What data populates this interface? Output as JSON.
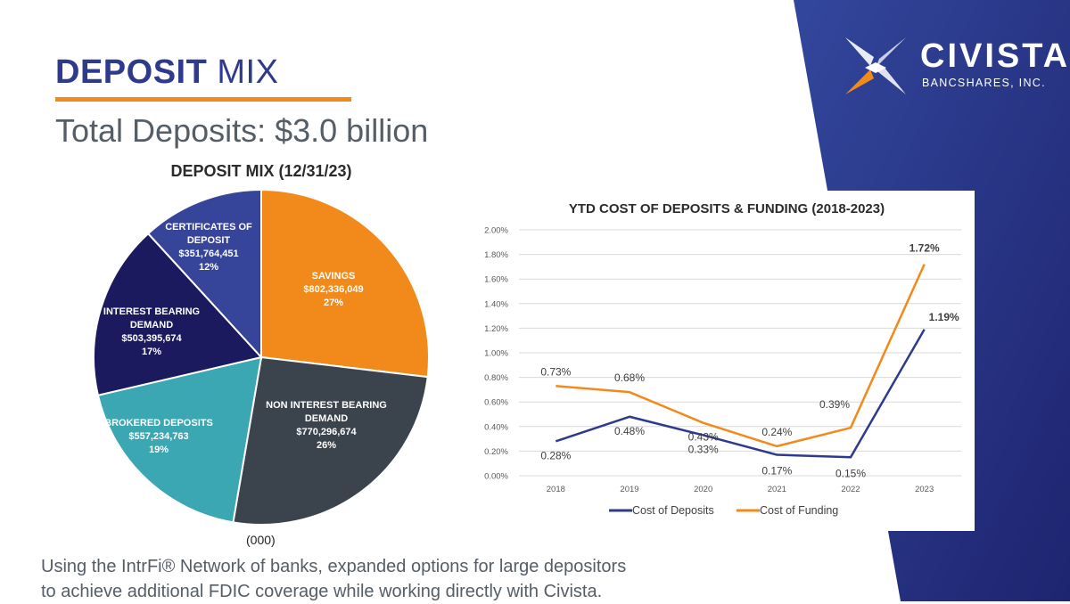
{
  "header": {
    "title_bold": "DEPOSIT",
    "title_light": " MIX",
    "subtitle": "Total Deposits:  $3.0 billion"
  },
  "brand": {
    "name": "CIVISTA",
    "tagline": "BANCSHARES, INC.",
    "colors": {
      "navy": "#2e3a8c",
      "orange": "#f28a1b",
      "gradient_dark": "#1e2470",
      "gradient_light": "#33479c"
    }
  },
  "footer": {
    "unit_note": "(000)",
    "line1": "Using the IntrFi® Network of banks, expanded options for large depositors",
    "line2": "to achieve additional FDIC coverage while working directly with Civista."
  },
  "chart_data": [
    {
      "type": "pie",
      "title": "DEPOSIT MIX (12/31/23)",
      "slices": [
        {
          "label_lines": [
            "SAVINGS"
          ],
          "amount": "$802,336,049",
          "pct_label": "27%",
          "value": 802336049,
          "color": "#f28a1b"
        },
        {
          "label_lines": [
            "NON INTEREST BEARING",
            "DEMAND"
          ],
          "amount": "$770,296,674",
          "pct_label": "26%",
          "value": 770296674,
          "color": "#3b434c"
        },
        {
          "label_lines": [
            "BROKERED DEPOSITS"
          ],
          "amount": "$557,234,763",
          "pct_label": "19%",
          "value": 557234763,
          "color": "#3aa7b3"
        },
        {
          "label_lines": [
            "INTEREST BEARING",
            "DEMAND"
          ],
          "amount": "$503,395,674",
          "pct_label": "17%",
          "value": 503395674,
          "color": "#1c1a5e"
        },
        {
          "label_lines": [
            "CERTIFICATES OF",
            "DEPOSIT"
          ],
          "amount": "$351,764,451",
          "pct_label": "12%",
          "value": 351764451,
          "color": "#36449a"
        }
      ]
    },
    {
      "type": "line",
      "title": "YTD COST OF DEPOSITS & FUNDING (2018-2023)",
      "categories": [
        "2018",
        "2019",
        "2020",
        "2021",
        "2022",
        "2023"
      ],
      "ylim": [
        0,
        2.0
      ],
      "yticks": [
        "0.00%",
        "0.20%",
        "0.40%",
        "0.60%",
        "0.80%",
        "1.00%",
        "1.20%",
        "1.40%",
        "1.60%",
        "1.80%",
        "2.00%"
      ],
      "grid": true,
      "legend": "bottom",
      "series": [
        {
          "name": "Cost of Deposits",
          "color": "#2e3a8c",
          "values": [
            0.28,
            0.48,
            0.33,
            0.17,
            0.15,
            1.19
          ],
          "labels": [
            "0.28%",
            "0.48%",
            "0.33%",
            "0.17%",
            "0.15%",
            "1.19%"
          ]
        },
        {
          "name": "Cost of Funding",
          "color": "#f28a1b",
          "values": [
            0.73,
            0.68,
            0.43,
            0.24,
            0.39,
            1.72
          ],
          "labels": [
            "0.73%",
            "0.68%",
            "0.43%",
            "0.24%",
            "0.39%",
            "1.72%"
          ]
        }
      ]
    }
  ]
}
